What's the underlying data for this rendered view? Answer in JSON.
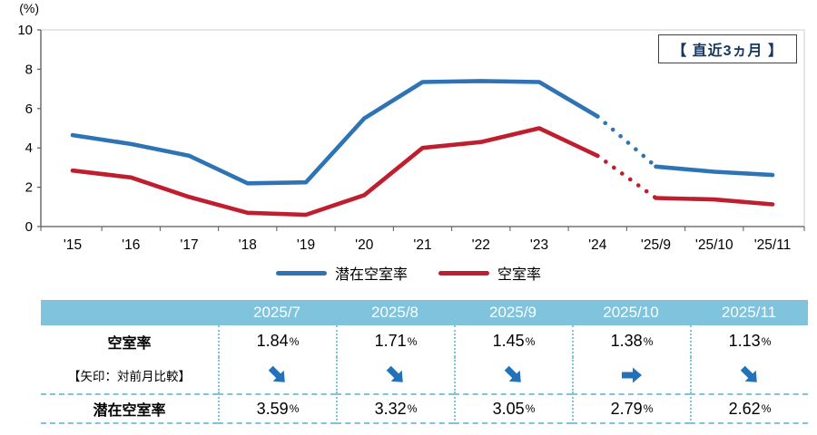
{
  "chart_data": {
    "type": "line",
    "y_unit": "(%)",
    "y_ticks": [
      0,
      2,
      4,
      6,
      8,
      10
    ],
    "ylim": [
      0,
      10
    ],
    "annotation": "【 直近3ヵ月 】",
    "legend_position": "bottom",
    "categories": [
      "'15",
      "'16",
      "'17",
      "'18",
      "'19",
      "'20",
      "'21",
      "'22",
      "'23",
      "'24",
      "'25/9",
      "'25/10",
      "'25/11"
    ],
    "series": [
      {
        "name": "潜在空室率",
        "color": "#2e74b5",
        "values": [
          4.65,
          4.2,
          3.6,
          2.2,
          2.25,
          5.5,
          7.35,
          7.4,
          7.35,
          5.6,
          3.05,
          2.79,
          2.62
        ]
      },
      {
        "name": "空室率",
        "color": "#bf1e2e",
        "values": [
          2.85,
          2.5,
          1.5,
          0.7,
          0.6,
          1.6,
          4.0,
          4.3,
          5.0,
          3.6,
          1.45,
          1.38,
          1.13
        ]
      }
    ],
    "dotted_between": [
      9,
      10
    ]
  },
  "table": {
    "col_headers": [
      "2025/7",
      "2025/8",
      "2025/9",
      "2025/10",
      "2025/11"
    ],
    "percent_sign": "%",
    "rows": {
      "vacancy": {
        "label": "空室率",
        "values": [
          "1.84",
          "1.71",
          "1.45",
          "1.38",
          "1.13"
        ]
      },
      "arrow_note": {
        "label": "【矢印：対前月比較】",
        "directions": [
          "se",
          "se",
          "se",
          "e",
          "se"
        ]
      },
      "potential": {
        "label": "潜在空室率",
        "values": [
          "3.59",
          "3.32",
          "3.05",
          "2.79",
          "2.62"
        ]
      }
    }
  },
  "colors": {
    "series_blue": "#2e74b5",
    "series_red": "#bf1e2e",
    "table_header_bg": "#7fc3dc",
    "table_border": "#7fc3dc",
    "arrow": "#2471b8",
    "annotation_text": "#17375e"
  }
}
